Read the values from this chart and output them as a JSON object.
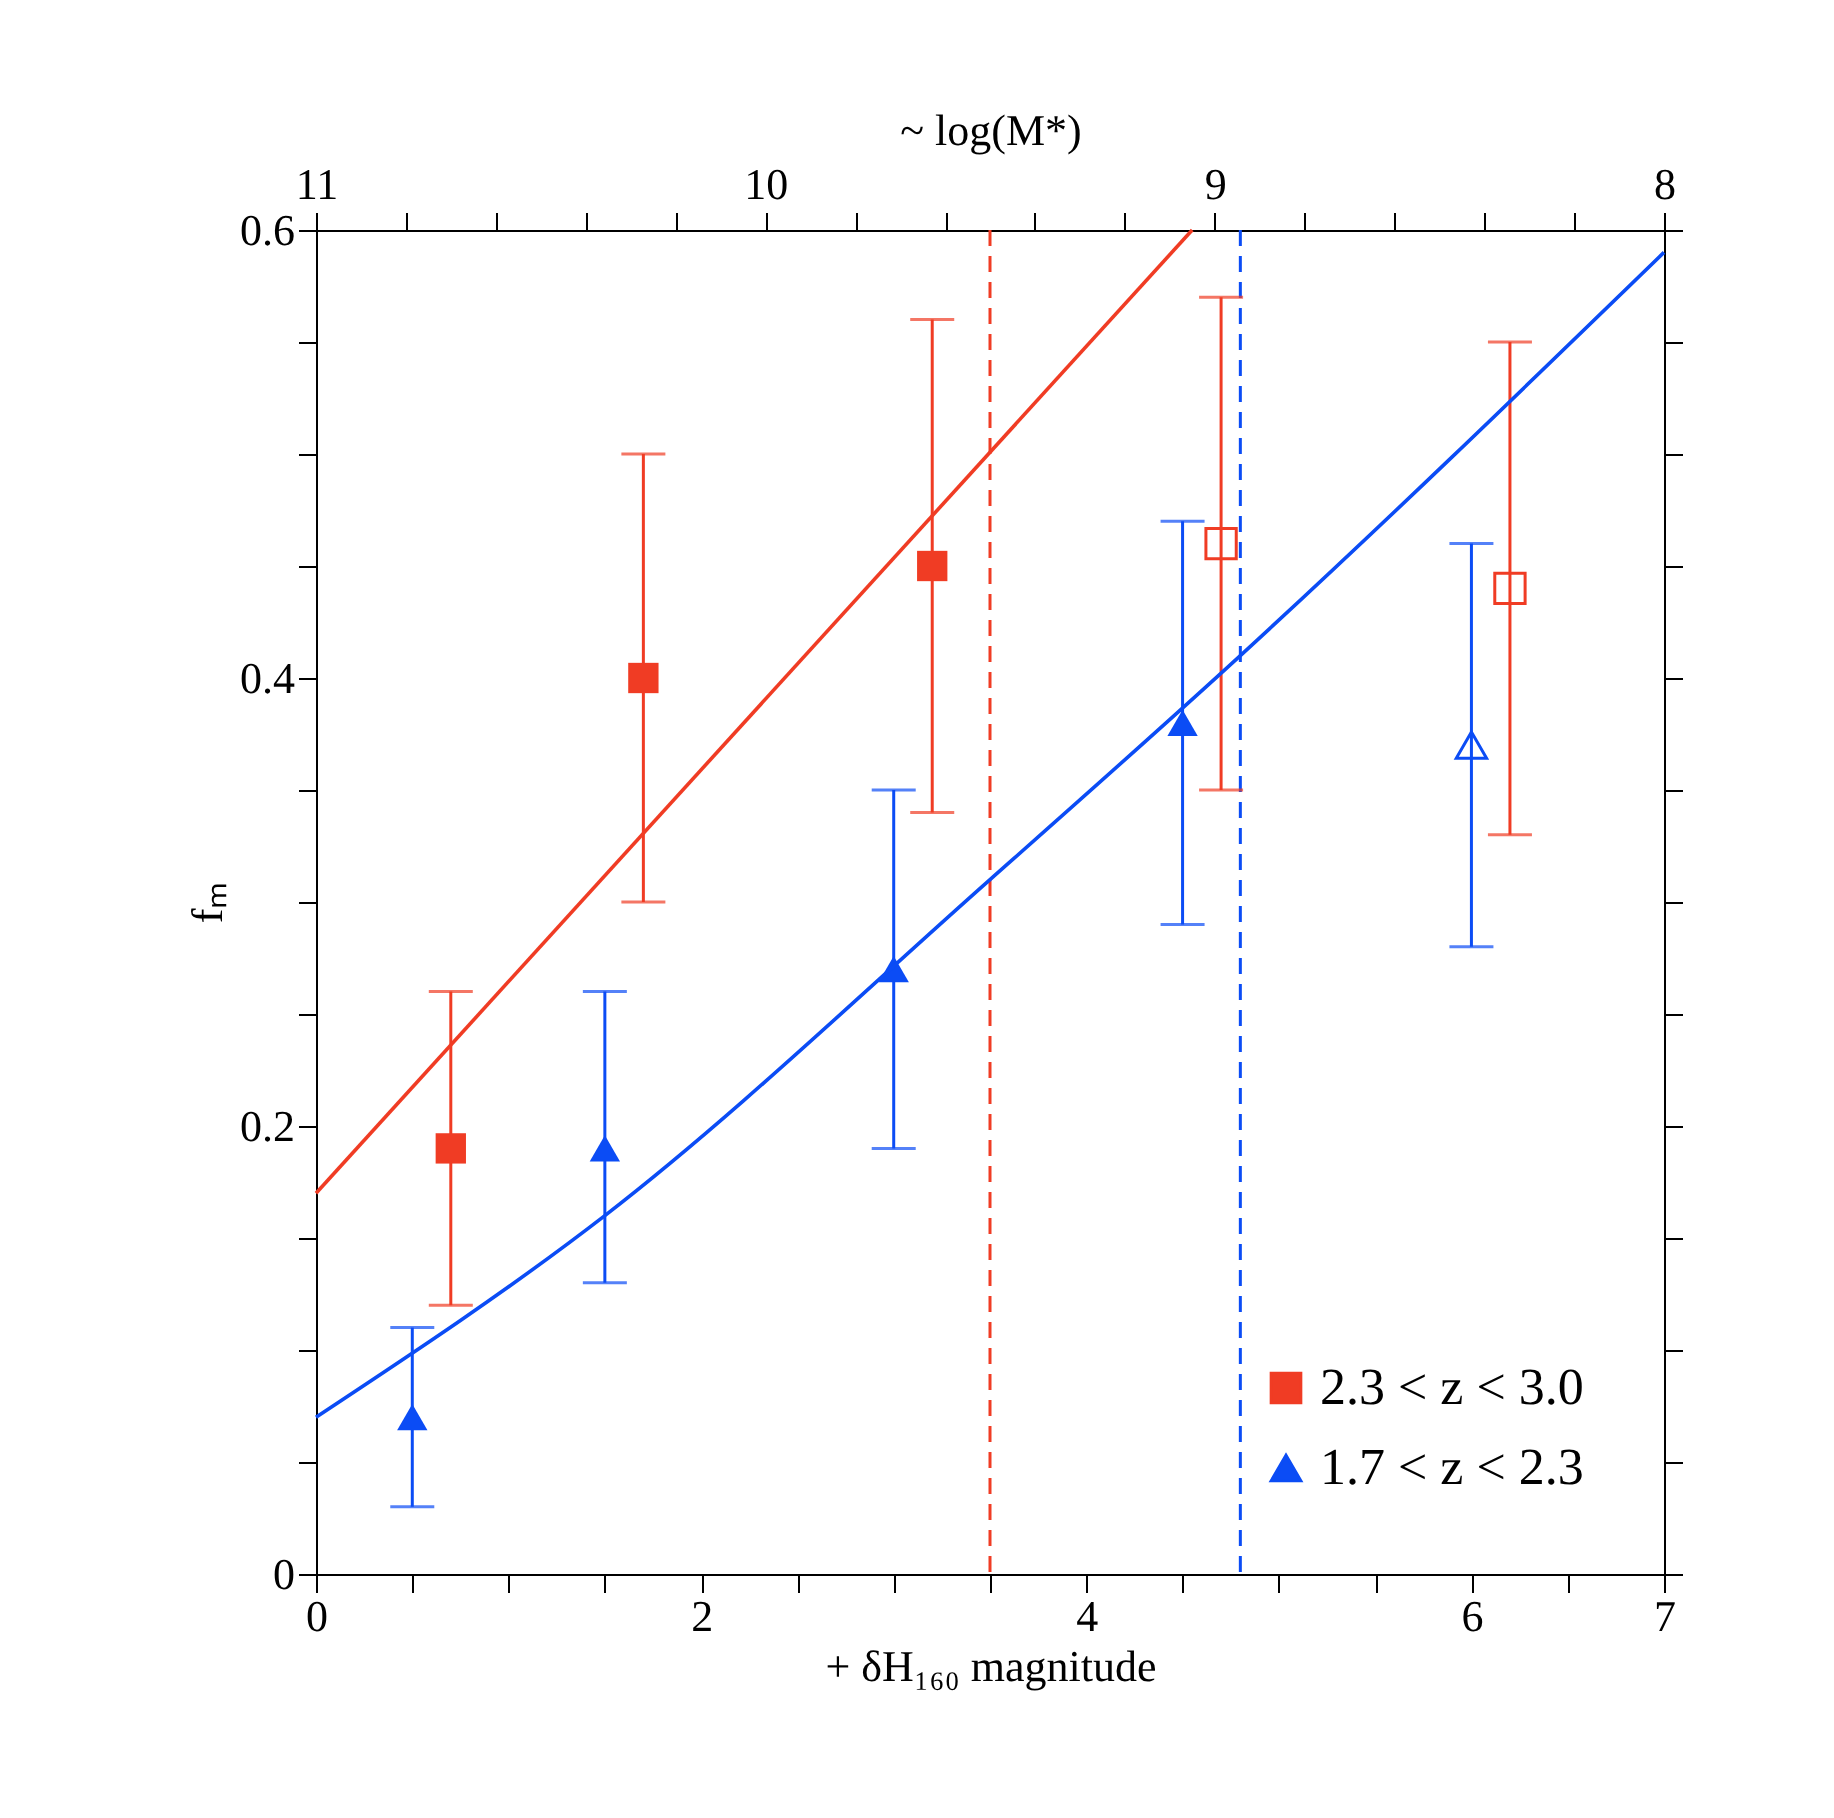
{
  "chart_data": {
    "type": "scatter",
    "xlabel": "+ δH₁₆₀ magnitude",
    "ylabel": "fₘ",
    "x2label": "~ log(M*)",
    "xlim": [
      0,
      7
    ],
    "ylim": [
      0,
      0.6
    ],
    "xticks": [
      0,
      {
        "value": 0.5,
        "label": null
      },
      {
        "value": 1,
        "label": null
      },
      {
        "value": 1.5,
        "label": null
      },
      2,
      {
        "value": 2.5,
        "label": null
      },
      {
        "value": 3,
        "label": null
      },
      {
        "value": 3.5,
        "label": null
      },
      4,
      {
        "value": 4.5,
        "label": null
      },
      {
        "value": 5,
        "label": null
      },
      {
        "value": 5.5,
        "label": null
      },
      6,
      {
        "value": 6.5,
        "label": null
      },
      7
    ],
    "yticks": [
      0,
      {
        "value": 0.05,
        "label": null
      },
      {
        "value": 0.1,
        "label": null
      },
      {
        "value": 0.15,
        "label": null
      },
      0.2,
      {
        "value": 0.25,
        "label": null
      },
      {
        "value": 0.3,
        "label": null
      },
      {
        "value": 0.35,
        "label": null
      },
      0.4,
      {
        "value": 0.45,
        "label": null
      },
      {
        "value": 0.5,
        "label": null
      },
      {
        "value": 0.55,
        "label": null
      },
      0.6
    ],
    "x2lim": [
      11,
      8
    ],
    "x2ticks": [
      11,
      {
        "value": 10.8,
        "label": null
      },
      {
        "value": 10.6,
        "label": null
      },
      {
        "value": 10.4,
        "label": null
      },
      {
        "value": 10.2,
        "label": null
      },
      10,
      {
        "value": 9.8,
        "label": null
      },
      {
        "value": 9.6,
        "label": null
      },
      {
        "value": 9.4,
        "label": null
      },
      {
        "value": 9.2,
        "label": null
      },
      9,
      {
        "value": 8.8,
        "label": null
      },
      {
        "value": 8.6,
        "label": null
      },
      {
        "value": 8.4,
        "label": null
      },
      {
        "value": 8.2,
        "label": null
      },
      8
    ],
    "grid": false,
    "legend": "bottom right",
    "ref_lines": [
      {
        "axis": "x",
        "value": 3.5,
        "color": "#f03c24",
        "line_style": "dashed"
      },
      {
        "axis": "x",
        "value": 4.8,
        "color": "#0b4cf5",
        "line_style": "dashed"
      }
    ],
    "series": [
      {
        "name": "2.3 < z < 3.0",
        "color": "#f03c24",
        "marker": "square",
        "x": [
          0.7,
          1.7,
          3.2
        ],
        "values": [
          0.19,
          0.4,
          0.45
        ],
        "errors": [
          [
            0.12,
            0.26
          ],
          [
            0.3,
            0.5
          ],
          [
            0.34,
            0.56
          ]
        ]
      },
      {
        "color": "#f03c24",
        "marker": "square",
        "x": [
          4.7,
          6.2
        ],
        "values": [
          0.46,
          0.44
        ],
        "errors": [
          [
            0.35,
            0.57
          ],
          [
            0.33,
            0.55
          ]
        ]
      },
      {
        "name": "1.7 < z < 2.3",
        "color": "#0b4cf5",
        "marker": "triangle",
        "x": [
          0.5,
          1.5,
          3.0,
          4.5
        ],
        "values": [
          0.07,
          0.19,
          0.27,
          0.38
        ],
        "errors": [
          [
            0.03,
            0.11
          ],
          [
            0.13,
            0.26
          ],
          [
            0.19,
            0.35
          ],
          [
            0.29,
            0.47
          ]
        ]
      },
      {
        "color": "#0b4cf5",
        "marker": "triangle",
        "x": [
          6.0
        ],
        "values": [
          0.37
        ],
        "errors": [
          [
            0.28,
            0.46
          ]
        ]
      },
      {
        "type": "line",
        "color": "#f03c24",
        "line_style": "solid",
        "x": [
          0,
          4.55
        ],
        "values": [
          0.17,
          0.6
        ]
      },
      {
        "type": "line",
        "color": "#0b4cf5",
        "line_style": "solid",
        "x": [
          0,
          1.5,
          3.5,
          4.8,
          7
        ],
        "values": [
          0.07,
          0.16,
          0.31,
          0.41,
          0.59
        ]
      }
    ]
  }
}
